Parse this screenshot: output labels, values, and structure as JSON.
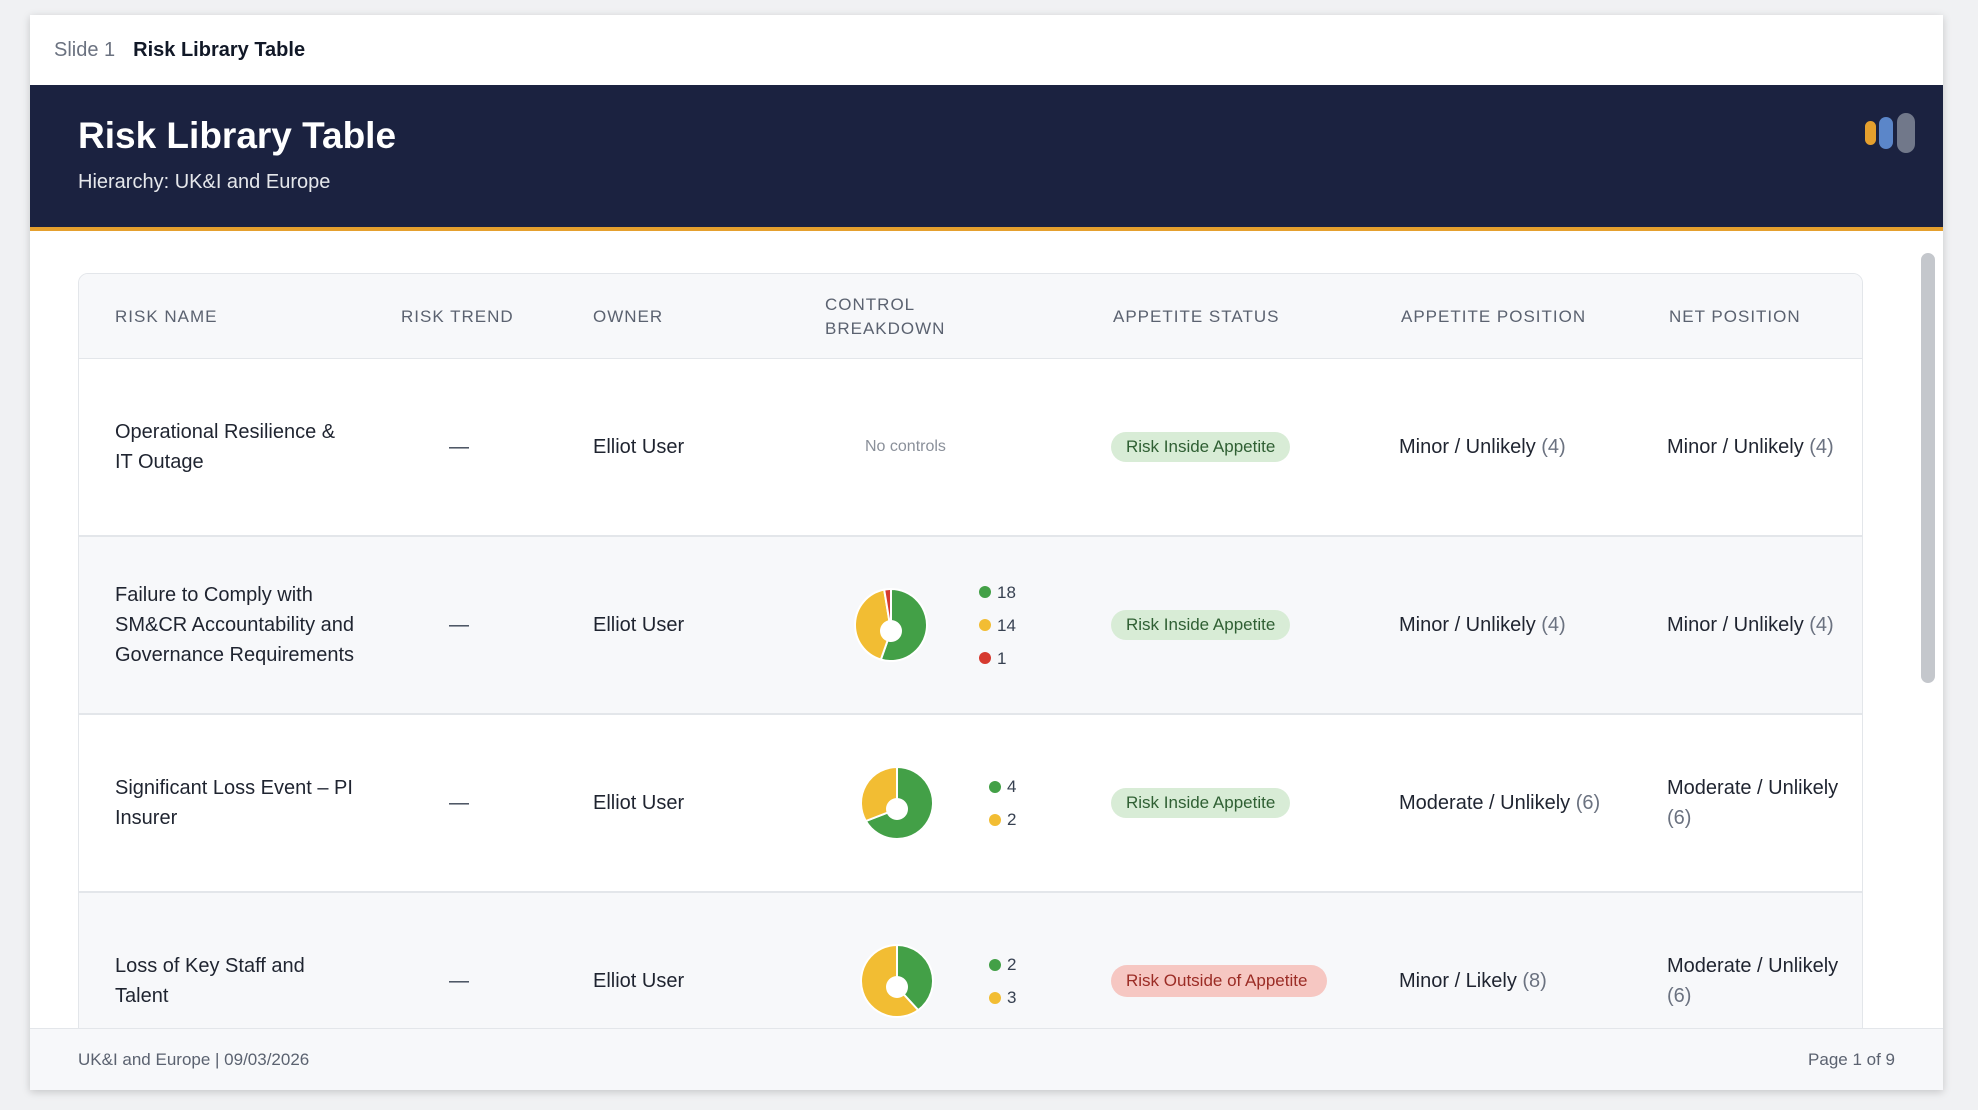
{
  "slide_bar": {
    "number": "Slide 1",
    "name": "Risk Library Table"
  },
  "header": {
    "title": "Risk Library Table",
    "subtitle": "Hierarchy: UK&I and Europe"
  },
  "colors": {
    "green": "#43a047",
    "amber": "#f2bd33",
    "red": "#d63a2f",
    "navy": "#1b2240",
    "accent": "#e5a02e"
  },
  "table": {
    "columns": [
      "RISK NAME",
      "RISK TREND",
      "OWNER",
      "CONTROL\nBREAKDOWN",
      "APPETITE STATUS",
      "APPETITE POSITION",
      "NET POSITION"
    ],
    "rows": [
      {
        "name": "Operational Resilience & IT Outage",
        "trend": "—",
        "owner": "Elliot User",
        "controls_text": "No controls",
        "controls": [],
        "status": "Risk Inside Appetite",
        "status_kind": "inside",
        "appetite_label": "Minor / Unlikely",
        "appetite_score": "(4)",
        "net_label": "Minor / Unlikely",
        "net_score": "(4)"
      },
      {
        "name": "Failure to Comply with SM&CR Accountability and Governance Requirements",
        "trend": "—",
        "owner": "Elliot User",
        "controls_text": "",
        "controls": [
          {
            "label": "18",
            "value": 18,
            "color": "green"
          },
          {
            "label": "14",
            "value": 14,
            "color": "amber"
          },
          {
            "label": "1",
            "value": 1,
            "color": "red"
          }
        ],
        "status": "Risk Inside Appetite",
        "status_kind": "inside",
        "appetite_label": "Minor / Unlikely",
        "appetite_score": "(4)",
        "net_label": "Minor / Unlikely",
        "net_score": "(4)"
      },
      {
        "name": "Significant Loss Event – PI Insurer",
        "trend": "—",
        "owner": "Elliot User",
        "controls_text": "",
        "controls": [
          {
            "label": "4",
            "value": 4,
            "color": "green"
          },
          {
            "label": "2",
            "value": 2,
            "color": "amber"
          }
        ],
        "status": "Risk Inside Appetite",
        "status_kind": "inside",
        "appetite_label": "Moderate / Unlikely",
        "appetite_score": "(6)",
        "net_label": "Moderate / Unlikely",
        "net_score": "(6)"
      },
      {
        "name": "Loss of Key Staff and Talent",
        "trend": "—",
        "owner": "Elliot User",
        "controls_text": "",
        "controls": [
          {
            "label": "2",
            "value": 2,
            "color": "green"
          },
          {
            "label": "3",
            "value": 3,
            "color": "amber"
          }
        ],
        "status": "Risk Outside of Appetite",
        "status_kind": "outside",
        "appetite_label": "Minor / Likely",
        "appetite_score": "(8)",
        "net_label": "Moderate / Unlikely",
        "net_score": "(6)"
      }
    ]
  },
  "footer": {
    "left": "UK&I and Europe | 09/03/2026",
    "right": "Page 1 of 9"
  }
}
